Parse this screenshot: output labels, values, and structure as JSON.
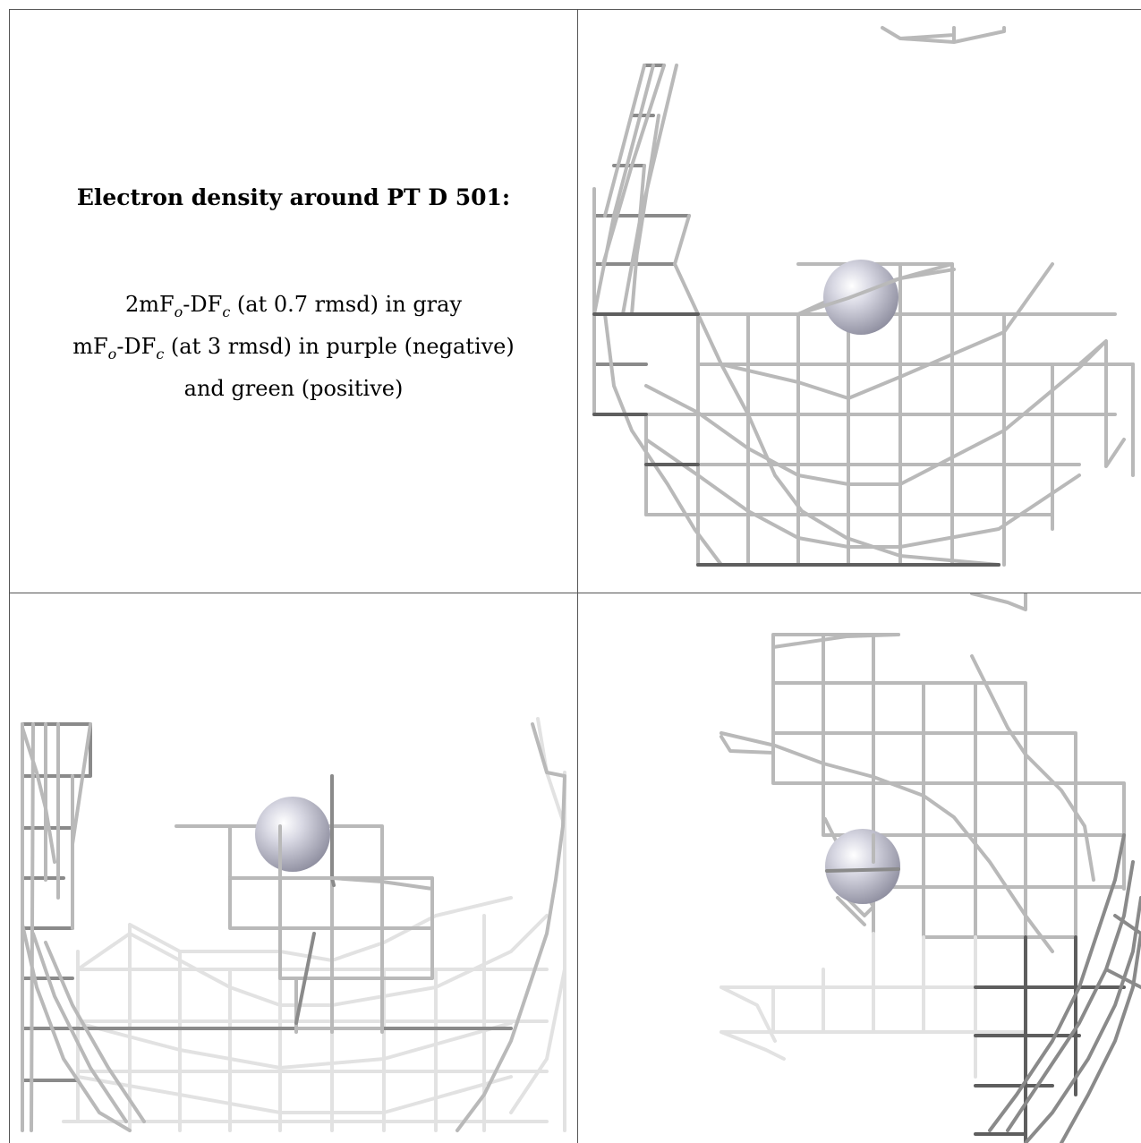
{
  "caption": {
    "title": "Electron density around PT D 501:",
    "line1_prefix": "2mF",
    "line1_sub_o": "o",
    "line1_mid": "-DF",
    "line1_sub_c": "c",
    "line1_suffix": " (at 0.7 rmsd) in gray",
    "line2_prefix": "mF",
    "line2_sub_o": "o",
    "line2_mid": "-DF",
    "line2_sub_c": "c",
    "line2_suffix": " (at 3 rmsd) in purple (negative)",
    "line3": "and green (positive)"
  },
  "colors": {
    "mesh_gray": "#b9b9b9",
    "mesh_dark": "#5e5e5e",
    "atom_sphere": "#c8c8d6",
    "border": "#555555"
  }
}
